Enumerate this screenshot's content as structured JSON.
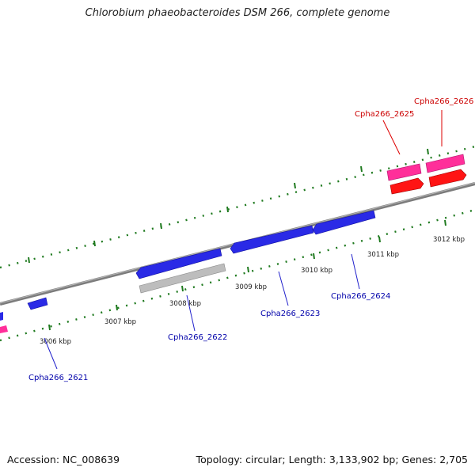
{
  "title": "Chlorobium phaeobacteroides DSM 266, complete genome",
  "footer": {
    "accession": "Accession: NC_008639",
    "topology": "Topology: circular; Length: 3,133,902 bp; Genes: 2,705"
  },
  "colors": {
    "backbone": "#8a8a8a",
    "tick": "#1f7a1f",
    "forward_gene": "#ff2f9a",
    "forward_cds": "#ff1414",
    "reverse_gene": "#2222ee",
    "pseudo": "#bdbdbd",
    "forward_label": "#cc0000",
    "reverse_label": "#0000aa"
  },
  "kbp_labels": [
    "3006 kbp",
    "3007 kbp",
    "3008 kbp",
    "3009 kbp",
    "3010 kbp",
    "3011 kbp",
    "3012 kbp"
  ],
  "gene_labels": {
    "g2621": "Cpha266_2621",
    "g2622": "Cpha266_2622",
    "g2623": "Cpha266_2623",
    "g2624": "Cpha266_2624",
    "g2625": "Cpha266_2625",
    "g2626": "Cpha266_2626"
  }
}
